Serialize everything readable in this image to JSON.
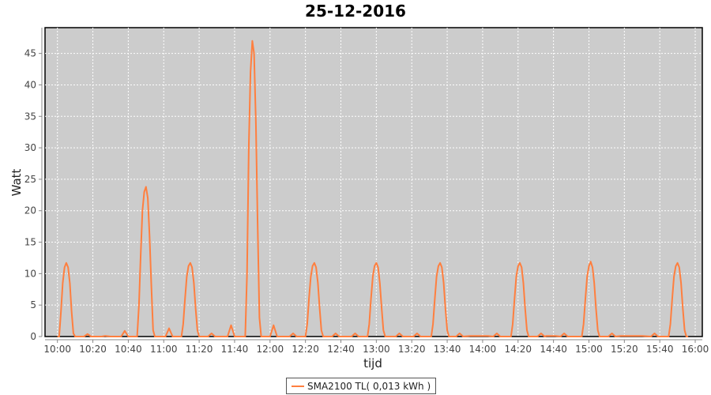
{
  "chart_data": {
    "type": "line",
    "title": "25-12-2016",
    "xlabel": "tijd",
    "ylabel": "Watt",
    "xlim": [
      "09:53",
      "16:04"
    ],
    "ylim": [
      0,
      49.1
    ],
    "grid": true,
    "legend_position": "bottom",
    "background_color": "#cccccc",
    "xticks": [
      "10:00",
      "10:20",
      "10:40",
      "11:00",
      "11:20",
      "11:40",
      "12:00",
      "12:20",
      "12:40",
      "13:00",
      "13:20",
      "13:40",
      "14:00",
      "14:20",
      "14:40",
      "15:00",
      "15:20",
      "15:40",
      "16:00"
    ],
    "yticks": [
      0,
      5,
      10,
      15,
      20,
      25,
      30,
      35,
      40,
      45
    ],
    "series": [
      {
        "name": "SMA2100 TL( 0,013 kWh )",
        "color": "#ff7f3f",
        "points": [
          [
            "10:00",
            0
          ],
          [
            "10:01",
            0
          ],
          [
            "10:02",
            4
          ],
          [
            "10:03",
            8.5
          ],
          [
            "10:04",
            11
          ],
          [
            "10:05",
            11.7
          ],
          [
            "10:06",
            11
          ],
          [
            "10:07",
            8.5
          ],
          [
            "10:08",
            4
          ],
          [
            "10:09",
            0.5
          ],
          [
            "10:10",
            0
          ],
          [
            "10:15",
            0
          ],
          [
            "10:17",
            0.4
          ],
          [
            "10:19",
            0
          ],
          [
            "10:25",
            0
          ],
          [
            "10:27",
            0.1
          ],
          [
            "10:30",
            0
          ],
          [
            "10:36",
            0
          ],
          [
            "10:38",
            0.9
          ],
          [
            "10:40",
            0
          ],
          [
            "10:45",
            0
          ],
          [
            "10:46",
            5
          ],
          [
            "10:47",
            13
          ],
          [
            "10:48",
            20
          ],
          [
            "10:49",
            23
          ],
          [
            "10:50",
            23.8
          ],
          [
            "10:51",
            22
          ],
          [
            "10:52",
            16
          ],
          [
            "10:53",
            8
          ],
          [
            "10:54",
            1
          ],
          [
            "10:55",
            0
          ],
          [
            "11:01",
            0
          ],
          [
            "11:03",
            1.3
          ],
          [
            "11:05",
            0
          ],
          [
            "11:10",
            0
          ],
          [
            "11:11",
            2
          ],
          [
            "11:12",
            6
          ],
          [
            "11:13",
            9.5
          ],
          [
            "11:14",
            11.2
          ],
          [
            "11:15",
            11.7
          ],
          [
            "11:16",
            11
          ],
          [
            "11:17",
            8.5
          ],
          [
            "11:18",
            4.5
          ],
          [
            "11:19",
            1
          ],
          [
            "11:20",
            0
          ],
          [
            "11:25",
            0
          ],
          [
            "11:27",
            0.5
          ],
          [
            "11:29",
            0
          ],
          [
            "11:36",
            0
          ],
          [
            "11:38",
            1.8
          ],
          [
            "11:40",
            0
          ],
          [
            "11:46",
            0
          ],
          [
            "11:47",
            10
          ],
          [
            "11:48",
            30
          ],
          [
            "11:49",
            42
          ],
          [
            "11:50",
            47
          ],
          [
            "11:51",
            45
          ],
          [
            "11:52",
            34
          ],
          [
            "11:53",
            18
          ],
          [
            "11:54",
            3
          ],
          [
            "11:55",
            0
          ],
          [
            "12:00",
            0
          ],
          [
            "12:02",
            1.8
          ],
          [
            "12:04",
            0
          ],
          [
            "12:11",
            0
          ],
          [
            "12:13",
            0.5
          ],
          [
            "12:15",
            0
          ],
          [
            "12:20",
            0
          ],
          [
            "12:21",
            2
          ],
          [
            "12:22",
            6
          ],
          [
            "12:23",
            9.5
          ],
          [
            "12:24",
            11.2
          ],
          [
            "12:25",
            11.7
          ],
          [
            "12:26",
            11
          ],
          [
            "12:27",
            8.5
          ],
          [
            "12:28",
            4.5
          ],
          [
            "12:29",
            1
          ],
          [
            "12:30",
            0
          ],
          [
            "12:35",
            0
          ],
          [
            "12:37",
            0.5
          ],
          [
            "12:39",
            0
          ],
          [
            "12:46",
            0
          ],
          [
            "12:48",
            0.5
          ],
          [
            "12:50",
            0
          ],
          [
            "12:55",
            0
          ],
          [
            "12:56",
            2
          ],
          [
            "12:57",
            6
          ],
          [
            "12:58",
            9.5
          ],
          [
            "12:59",
            11.2
          ],
          [
            "13:00",
            11.7
          ],
          [
            "13:01",
            11
          ],
          [
            "13:02",
            8.5
          ],
          [
            "13:03",
            4.5
          ],
          [
            "13:04",
            1
          ],
          [
            "13:05",
            0
          ],
          [
            "13:11",
            0
          ],
          [
            "13:13",
            0.5
          ],
          [
            "13:15",
            0
          ],
          [
            "13:21",
            0
          ],
          [
            "13:23",
            0.5
          ],
          [
            "13:25",
            0
          ],
          [
            "13:31",
            0
          ],
          [
            "13:32",
            2
          ],
          [
            "13:33",
            6
          ],
          [
            "13:34",
            9.5
          ],
          [
            "13:35",
            11.2
          ],
          [
            "13:36",
            11.7
          ],
          [
            "13:37",
            11
          ],
          [
            "13:38",
            8.5
          ],
          [
            "13:39",
            4.5
          ],
          [
            "13:40",
            1
          ],
          [
            "13:41",
            0
          ],
          [
            "13:45",
            0
          ],
          [
            "13:47",
            0.5
          ],
          [
            "13:49",
            0
          ],
          [
            "13:53",
            0.1
          ],
          [
            "14:03",
            0.1
          ],
          [
            "14:06",
            0
          ],
          [
            "14:08",
            0.5
          ],
          [
            "14:10",
            0
          ],
          [
            "14:16",
            0
          ],
          [
            "14:17",
            2
          ],
          [
            "14:18",
            6
          ],
          [
            "14:19",
            9.5
          ],
          [
            "14:20",
            11.2
          ],
          [
            "14:21",
            11.7
          ],
          [
            "14:22",
            11
          ],
          [
            "14:23",
            8.5
          ],
          [
            "14:24",
            4.5
          ],
          [
            "14:25",
            1
          ],
          [
            "14:26",
            0
          ],
          [
            "14:31",
            0
          ],
          [
            "14:33",
            0.5
          ],
          [
            "14:35",
            0
          ],
          [
            "14:36",
            0.1
          ],
          [
            "14:41",
            0.1
          ],
          [
            "14:44",
            0
          ],
          [
            "14:46",
            0.5
          ],
          [
            "14:48",
            0
          ],
          [
            "14:56",
            0
          ],
          [
            "14:57",
            2
          ],
          [
            "14:58",
            6
          ],
          [
            "14:59",
            9.5
          ],
          [
            "15:00",
            11.2
          ],
          [
            "15:01",
            11.9
          ],
          [
            "15:02",
            11
          ],
          [
            "15:03",
            8.5
          ],
          [
            "15:04",
            4.5
          ],
          [
            "15:05",
            1
          ],
          [
            "15:06",
            0
          ],
          [
            "15:11",
            0
          ],
          [
            "15:13",
            0.5
          ],
          [
            "15:15",
            0
          ],
          [
            "15:18",
            0.1
          ],
          [
            "15:30",
            0.1
          ],
          [
            "15:35",
            0
          ],
          [
            "15:37",
            0.5
          ],
          [
            "15:39",
            0
          ],
          [
            "15:45",
            0
          ],
          [
            "15:46",
            2
          ],
          [
            "15:47",
            6
          ],
          [
            "15:48",
            9.5
          ],
          [
            "15:49",
            11.2
          ],
          [
            "15:50",
            11.7
          ],
          [
            "15:51",
            11
          ],
          [
            "15:52",
            8.5
          ],
          [
            "15:53",
            4.5
          ],
          [
            "15:54",
            1
          ],
          [
            "15:55",
            0
          ],
          [
            "15:56",
            0
          ]
        ]
      }
    ]
  }
}
